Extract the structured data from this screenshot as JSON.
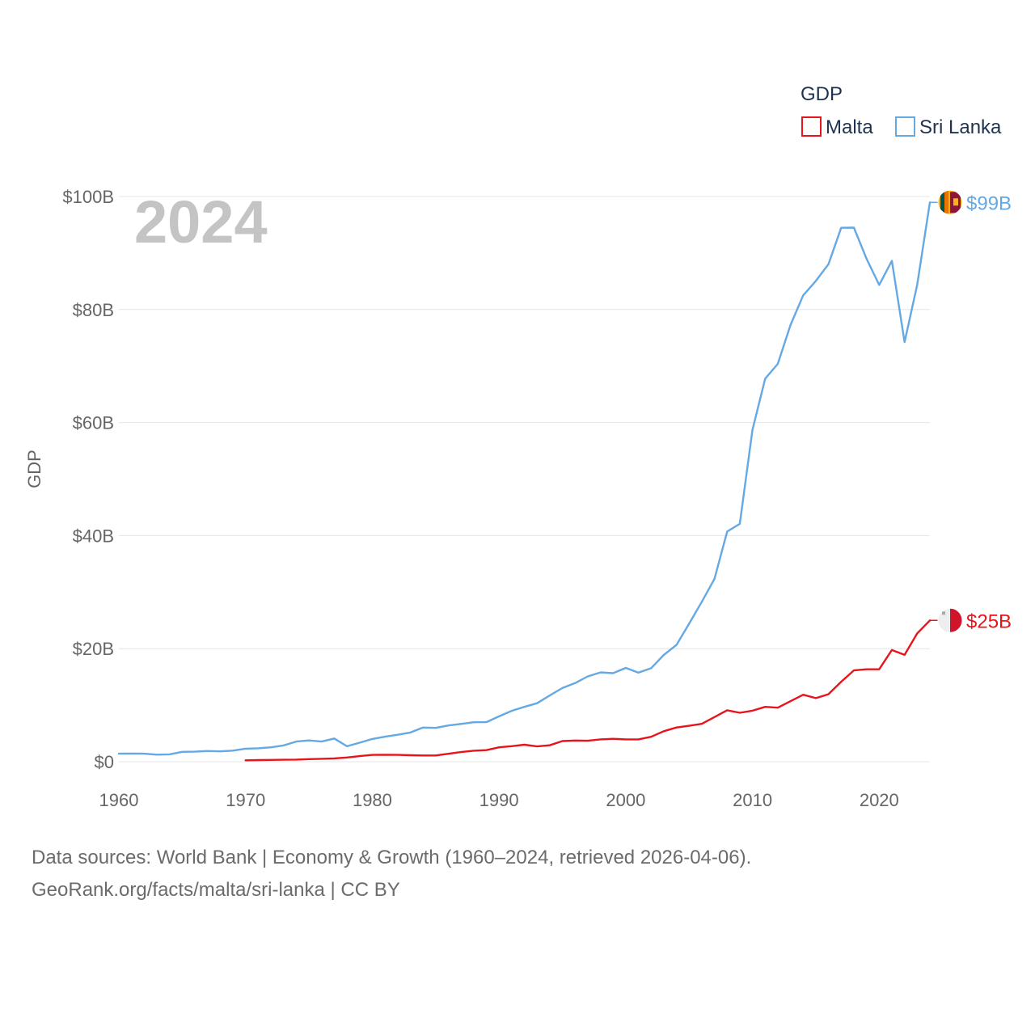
{
  "chart_data": {
    "type": "line",
    "title": "",
    "ylabel": "GDP",
    "xlabel": "",
    "year_label": "2024",
    "xlim": [
      1960,
      2024
    ],
    "ylim": [
      0,
      100
    ],
    "x_ticks": [
      1960,
      1970,
      1980,
      1990,
      2000,
      2010,
      2020
    ],
    "y_ticks": [
      {
        "value": 0,
        "label": "$0"
      },
      {
        "value": 20,
        "label": "$20B"
      },
      {
        "value": 40,
        "label": "$40B"
      },
      {
        "value": 60,
        "label": "$60B"
      },
      {
        "value": 80,
        "label": "$80B"
      },
      {
        "value": 100,
        "label": "$100B"
      }
    ],
    "grid": true,
    "legend": {
      "title": "GDP",
      "position": "top-right",
      "items": [
        {
          "name": "Malta",
          "color": "#e8141b"
        },
        {
          "name": "Sri Lanka",
          "color": "#64a8e4"
        }
      ]
    },
    "series": [
      {
        "name": "Sri Lanka",
        "color": "#64a8e4",
        "end_label": "$99B",
        "flag": "sri-lanka",
        "x": [
          1960,
          1961,
          1962,
          1963,
          1964,
          1965,
          1966,
          1967,
          1968,
          1969,
          1970,
          1971,
          1972,
          1973,
          1974,
          1975,
          1976,
          1977,
          1978,
          1979,
          1980,
          1981,
          1982,
          1983,
          1984,
          1985,
          1986,
          1987,
          1988,
          1989,
          1990,
          1991,
          1992,
          1993,
          1994,
          1995,
          1996,
          1997,
          1998,
          1999,
          2000,
          2001,
          2002,
          2003,
          2004,
          2005,
          2006,
          2007,
          2008,
          2009,
          2010,
          2011,
          2012,
          2013,
          2014,
          2015,
          2016,
          2017,
          2018,
          2019,
          2020,
          2021,
          2022,
          2023,
          2024
        ],
        "values": [
          1.41,
          1.44,
          1.42,
          1.24,
          1.3,
          1.74,
          1.78,
          1.89,
          1.83,
          1.96,
          2.3,
          2.37,
          2.55,
          2.87,
          3.56,
          3.76,
          3.56,
          4.1,
          2.73,
          3.36,
          4.02,
          4.42,
          4.77,
          5.17,
          6.04,
          5.98,
          6.41,
          6.68,
          6.98,
          6.99,
          8.03,
          9.0,
          9.7,
          10.34,
          11.72,
          13.03,
          13.9,
          15.09,
          15.79,
          15.66,
          16.6,
          15.75,
          16.54,
          18.88,
          20.66,
          24.41,
          28.28,
          32.35,
          40.71,
          42.07,
          58.72,
          67.77,
          70.39,
          77.26,
          82.51,
          85.07,
          88.02,
          94.47,
          94.49,
          89.01,
          84.35,
          88.61,
          74.23,
          84.36,
          98.96
        ]
      },
      {
        "name": "Malta",
        "color": "#e8141b",
        "end_label": "$25B",
        "flag": "malta",
        "x": [
          1970,
          1971,
          1972,
          1973,
          1974,
          1975,
          1976,
          1977,
          1978,
          1979,
          1980,
          1981,
          1982,
          1983,
          1984,
          1985,
          1986,
          1987,
          1988,
          1989,
          1990,
          1991,
          1992,
          1993,
          1994,
          1995,
          1996,
          1997,
          1998,
          1999,
          2000,
          2001,
          2002,
          2003,
          2004,
          2005,
          2006,
          2007,
          2008,
          2009,
          2010,
          2011,
          2012,
          2013,
          2014,
          2015,
          2016,
          2017,
          2018,
          2019,
          2020,
          2021,
          2022,
          2023,
          2024
        ],
        "values": [
          0.25,
          0.28,
          0.32,
          0.35,
          0.37,
          0.46,
          0.52,
          0.59,
          0.74,
          0.98,
          1.2,
          1.21,
          1.2,
          1.15,
          1.1,
          1.1,
          1.4,
          1.7,
          1.95,
          2.05,
          2.55,
          2.75,
          3.0,
          2.7,
          2.9,
          3.65,
          3.75,
          3.7,
          3.95,
          4.05,
          3.95,
          3.95,
          4.4,
          5.4,
          6.05,
          6.35,
          6.7,
          7.9,
          9.1,
          8.65,
          9.03,
          9.7,
          9.55,
          10.7,
          11.85,
          11.25,
          11.95,
          14.15,
          16.15,
          16.35,
          16.35,
          19.75,
          18.9,
          22.7,
          25.0
        ]
      }
    ]
  },
  "footer": {
    "line1": "Data sources: World Bank | Economy & Growth (1960–2024, retrieved 2026-04-06).",
    "line2": "GeoRank.org/facts/malta/sri-lanka | CC BY"
  }
}
